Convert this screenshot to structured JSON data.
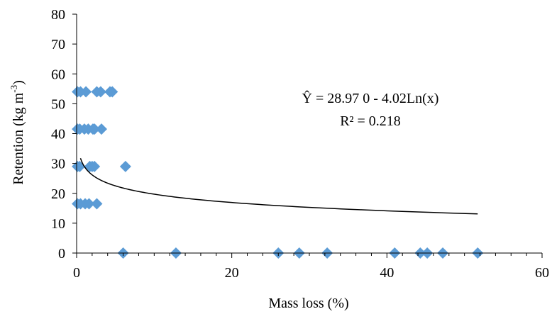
{
  "chart_data": {
    "type": "scatter",
    "xlabel": "Mass loss (%)",
    "ylabel_main": "Retention (kg m",
    "ylabel_sup": "-3",
    "ylabel_close": ")",
    "xlim": [
      0,
      60
    ],
    "ylim": [
      0,
      80
    ],
    "x_ticks": [
      "0",
      "20",
      "40",
      "60"
    ],
    "y_ticks": [
      "0",
      "10",
      "20",
      "30",
      "40",
      "50",
      "60",
      "70",
      "80"
    ],
    "x_minor_step": 2,
    "grid": false,
    "marker": "diamond",
    "marker_color": "#5B9BD5",
    "trendline_color": "#000000",
    "equation": "Ŷ = 28.97 0 - 4.02Ln(x)",
    "r_squared": "R² = 0.218",
    "trendline": {
      "a": 28.97,
      "b": -4.02,
      "x_start": 0.5,
      "x_end": 51.7
    },
    "points": [
      {
        "x": 0.1,
        "y": 54
      },
      {
        "x": 0.5,
        "y": 54
      },
      {
        "x": 1.2,
        "y": 54
      },
      {
        "x": 2.6,
        "y": 54
      },
      {
        "x": 3.1,
        "y": 54
      },
      {
        "x": 4.3,
        "y": 54
      },
      {
        "x": 4.6,
        "y": 54
      },
      {
        "x": 0.1,
        "y": 41.5
      },
      {
        "x": 0.4,
        "y": 41.5
      },
      {
        "x": 1.0,
        "y": 41.5
      },
      {
        "x": 1.5,
        "y": 41.5
      },
      {
        "x": 2.1,
        "y": 41.5
      },
      {
        "x": 2.3,
        "y": 41.5
      },
      {
        "x": 3.2,
        "y": 41.5
      },
      {
        "x": 0.1,
        "y": 29
      },
      {
        "x": 0.4,
        "y": 29
      },
      {
        "x": 1.7,
        "y": 29
      },
      {
        "x": 2.0,
        "y": 29
      },
      {
        "x": 2.3,
        "y": 29
      },
      {
        "x": 6.3,
        "y": 29
      },
      {
        "x": 0.1,
        "y": 16.5
      },
      {
        "x": 0.5,
        "y": 16.5
      },
      {
        "x": 1.1,
        "y": 16.5
      },
      {
        "x": 1.6,
        "y": 16.5
      },
      {
        "x": 2.6,
        "y": 16.5
      },
      {
        "x": 6.0,
        "y": 0
      },
      {
        "x": 12.8,
        "y": 0
      },
      {
        "x": 26.0,
        "y": 0
      },
      {
        "x": 28.7,
        "y": 0
      },
      {
        "x": 32.3,
        "y": 0
      },
      {
        "x": 41.0,
        "y": 0
      },
      {
        "x": 44.3,
        "y": 0
      },
      {
        "x": 45.2,
        "y": 0
      },
      {
        "x": 47.2,
        "y": 0
      },
      {
        "x": 51.7,
        "y": 0
      }
    ]
  }
}
